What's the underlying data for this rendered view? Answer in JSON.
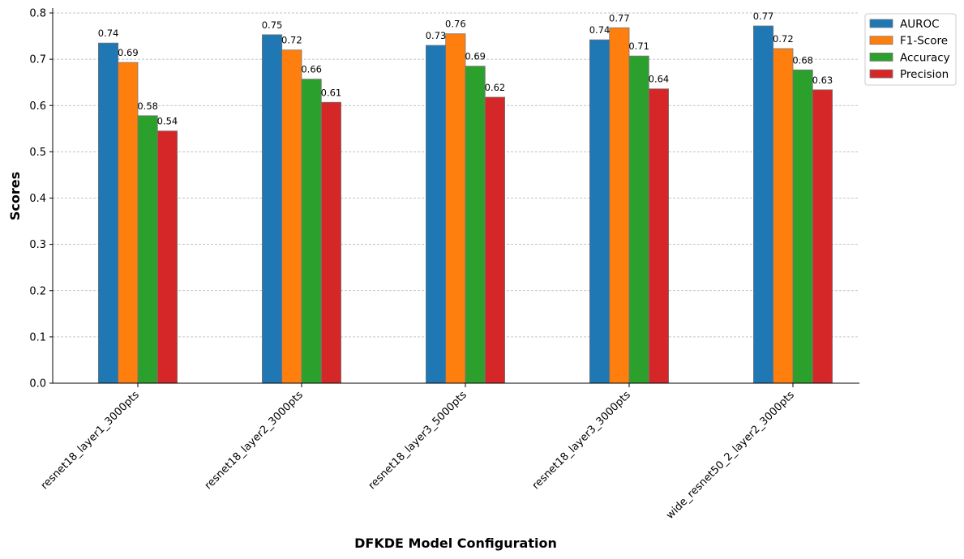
{
  "chart_data": {
    "type": "bar",
    "title": "",
    "xlabel": "DFKDE Model Configuration",
    "ylabel": "Scores",
    "ylim": [
      0,
      0.8
    ],
    "yticks": [
      "0.0",
      "0.1",
      "0.2",
      "0.3",
      "0.4",
      "0.5",
      "0.6",
      "0.7",
      "0.8"
    ],
    "grid": "horizontal dashed",
    "legend_position": "top-right outside",
    "categories": [
      "resnet18_layer1_3000pts",
      "resnet18_layer2_3000pts",
      "resnet18_layer3_5000pts",
      "resnet18_layer3_3000pts",
      "wide_resnet50_2_layer2_3000pts"
    ],
    "series": [
      {
        "name": "AUROC",
        "color": "#1f77b4",
        "values": [
          0.735,
          0.753,
          0.73,
          0.742,
          0.772
        ],
        "labels": [
          "0.74",
          "0.75",
          "0.73",
          "0.74",
          "0.77"
        ]
      },
      {
        "name": "F1-Score",
        "color": "#ff7f0e",
        "values": [
          0.693,
          0.72,
          0.755,
          0.768,
          0.723
        ],
        "labels": [
          "0.69",
          "0.72",
          "0.76",
          "0.77",
          "0.72"
        ]
      },
      {
        "name": "Accuracy",
        "color": "#2ca02c",
        "values": [
          0.578,
          0.657,
          0.685,
          0.707,
          0.677
        ],
        "labels": [
          "0.58",
          "0.66",
          "0.69",
          "0.71",
          "0.68"
        ]
      },
      {
        "name": "Precision",
        "color": "#d62728",
        "values": [
          0.545,
          0.607,
          0.618,
          0.636,
          0.634
        ],
        "labels": [
          "0.54",
          "0.61",
          "0.62",
          "0.64",
          "0.63"
        ]
      }
    ]
  }
}
